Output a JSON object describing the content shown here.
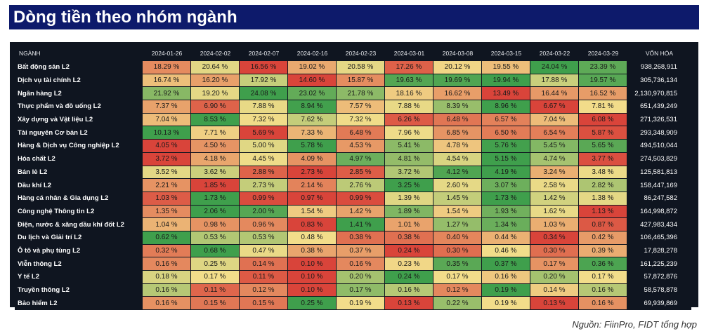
{
  "title": "Dòng tiền theo nhóm ngành",
  "source": "Nguồn: FiinPro, FIDT tổng hợp",
  "colors": {
    "title_bg": "#0d1a6b",
    "panel_bg": "#0f1520",
    "low": "#d9443a",
    "mid": "#f2dd8a",
    "high": "#3f9f4c"
  },
  "chart_data": {
    "type": "table",
    "title": "Dòng tiền theo nhóm ngành",
    "columns": [
      "NGÀNH",
      "2024-01-26",
      "2024-02-02",
      "2024-02-07",
      "2024-02-16",
      "2024-02-23",
      "2024-03-01",
      "2024-03-08",
      "2024-03-15",
      "2024-03-22",
      "2024-03-29",
      "VỐN HÓA"
    ],
    "rows": [
      {
        "name": "Bất động sản L2",
        "values": [
          18.29,
          20.64,
          16.56,
          19.02,
          20.58,
          17.26,
          20.12,
          19.55,
          24.04,
          23.39
        ],
        "cap": "938,268,911"
      },
      {
        "name": "Dịch vụ tài chính L2",
        "values": [
          16.74,
          16.2,
          17.92,
          14.6,
          15.87,
          19.63,
          19.69,
          19.94,
          17.88,
          19.57
        ],
        "cap": "305,736,134"
      },
      {
        "name": "Ngân hàng L2",
        "values": [
          21.92,
          19.2,
          24.08,
          23.02,
          21.78,
          18.16,
          16.62,
          13.49,
          16.44,
          16.52
        ],
        "cap": "2,130,970,815"
      },
      {
        "name": "Thực phẩm và đồ uống L2",
        "values": [
          7.37,
          6.9,
          7.88,
          8.94,
          7.57,
          7.88,
          8.39,
          8.96,
          6.67,
          7.81
        ],
        "cap": "651,439,249"
      },
      {
        "name": "Xây dựng và Vật liệu L2",
        "values": [
          7.04,
          8.53,
          7.32,
          7.62,
          7.32,
          6.26,
          6.48,
          6.57,
          7.04,
          6.08
        ],
        "cap": "271,326,531"
      },
      {
        "name": "Tài nguyên Cơ bản L2",
        "values": [
          10.13,
          7.71,
          5.69,
          7.33,
          6.48,
          7.96,
          6.85,
          6.5,
          6.54,
          5.87
        ],
        "cap": "293,348,909"
      },
      {
        "name": "Hàng & Dịch vụ Công nghiệp L2",
        "values": [
          4.05,
          4.5,
          5.0,
          5.78,
          4.53,
          5.41,
          4.78,
          5.76,
          5.45,
          5.65
        ],
        "cap": "494,510,044"
      },
      {
        "name": "Hóa chất L2",
        "values": [
          3.72,
          4.18,
          4.45,
          4.09,
          4.97,
          4.81,
          4.54,
          5.15,
          4.74,
          3.77
        ],
        "cap": "274,503,829"
      },
      {
        "name": "Bán lẻ L2",
        "values": [
          3.52,
          3.62,
          2.88,
          2.73,
          2.85,
          3.72,
          4.12,
          4.19,
          3.24,
          3.48
        ],
        "cap": "125,581,813"
      },
      {
        "name": "Dầu khí L2",
        "values": [
          2.21,
          1.85,
          2.73,
          2.14,
          2.76,
          3.25,
          2.6,
          3.07,
          2.58,
          2.82
        ],
        "cap": "158,447,169"
      },
      {
        "name": "Hàng cá nhân & Gia dụng L2",
        "values": [
          1.03,
          1.73,
          0.99,
          0.97,
          0.99,
          1.39,
          1.45,
          1.73,
          1.42,
          1.38
        ],
        "cap": "86,247,582"
      },
      {
        "name": "Công nghệ Thông tin L2",
        "values": [
          1.35,
          2.06,
          2.0,
          1.54,
          1.42,
          1.89,
          1.54,
          1.93,
          1.62,
          1.13
        ],
        "cap": "164,998,872"
      },
      {
        "name": "Điện, nước & xăng dầu khí đốt L2",
        "values": [
          1.04,
          0.98,
          0.96,
          0.83,
          1.41,
          1.01,
          1.27,
          1.34,
          1.03,
          0.87
        ],
        "cap": "427,983,434"
      },
      {
        "name": "Du lịch và Giải trí L2",
        "values": [
          0.62,
          0.53,
          0.53,
          0.48,
          0.38,
          0.38,
          0.4,
          0.44,
          0.34,
          0.42
        ],
        "cap": "106,465,396"
      },
      {
        "name": "Ô tô và phụ tùng L2",
        "values": [
          0.32,
          0.68,
          0.47,
          0.38,
          0.37,
          0.24,
          0.3,
          0.46,
          0.3,
          0.39
        ],
        "cap": "17,828,278"
      },
      {
        "name": "Viễn thông L2",
        "values": [
          0.16,
          0.25,
          0.14,
          0.1,
          0.16,
          0.23,
          0.35,
          0.37,
          0.17,
          0.36
        ],
        "cap": "161,225,239"
      },
      {
        "name": "Y tế L2",
        "values": [
          0.18,
          0.17,
          0.11,
          0.1,
          0.2,
          0.24,
          0.17,
          0.16,
          0.2,
          0.17
        ],
        "cap": "57,872,876"
      },
      {
        "name": "Truyền thông L2",
        "values": [
          0.16,
          0.11,
          0.12,
          0.1,
          0.17,
          0.16,
          0.12,
          0.19,
          0.14,
          0.16
        ],
        "cap": "58,578,878"
      },
      {
        "name": "Bảo hiểm L2",
        "values": [
          0.16,
          0.15,
          0.15,
          0.25,
          0.19,
          0.13,
          0.22,
          0.19,
          0.13,
          0.16
        ],
        "cap": "69,939,869"
      }
    ]
  }
}
